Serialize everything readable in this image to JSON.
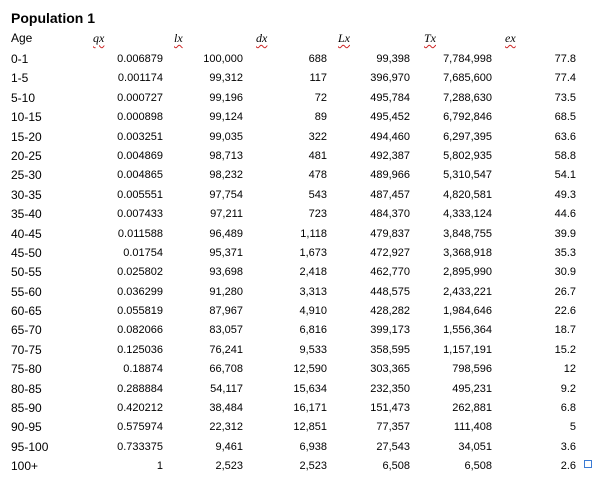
{
  "sheet": {
    "title": "Population 1",
    "headers": {
      "age": "Age",
      "qx": "qx",
      "lx": "lx",
      "dx": "dx",
      "Lx": "Lx",
      "Tx": "Tx",
      "ex": "ex"
    },
    "rows": [
      {
        "age": "0-1",
        "qx": "0.006879",
        "lx": "100,000",
        "dx": "688",
        "Lx": "99,398",
        "Tx": "7,784,998",
        "ex": "77.8"
      },
      {
        "age": "1-5",
        "qx": "0.001174",
        "lx": "99,312",
        "dx": "117",
        "Lx": "396,970",
        "Tx": "7,685,600",
        "ex": "77.4"
      },
      {
        "age": "5-10",
        "qx": "0.000727",
        "lx": "99,196",
        "dx": "72",
        "Lx": "495,784",
        "Tx": "7,288,630",
        "ex": "73.5"
      },
      {
        "age": "10-15",
        "qx": "0.000898",
        "lx": "99,124",
        "dx": "89",
        "Lx": "495,452",
        "Tx": "6,792,846",
        "ex": "68.5"
      },
      {
        "age": "15-20",
        "qx": "0.003251",
        "lx": "99,035",
        "dx": "322",
        "Lx": "494,460",
        "Tx": "6,297,395",
        "ex": "63.6"
      },
      {
        "age": "20-25",
        "qx": "0.004869",
        "lx": "98,713",
        "dx": "481",
        "Lx": "492,387",
        "Tx": "5,802,935",
        "ex": "58.8"
      },
      {
        "age": "25-30",
        "qx": "0.004865",
        "lx": "98,232",
        "dx": "478",
        "Lx": "489,966",
        "Tx": "5,310,547",
        "ex": "54.1"
      },
      {
        "age": "30-35",
        "qx": "0.005551",
        "lx": "97,754",
        "dx": "543",
        "Lx": "487,457",
        "Tx": "4,820,581",
        "ex": "49.3"
      },
      {
        "age": "35-40",
        "qx": "0.007433",
        "lx": "97,211",
        "dx": "723",
        "Lx": "484,370",
        "Tx": "4,333,124",
        "ex": "44.6"
      },
      {
        "age": "40-45",
        "qx": "0.011588",
        "lx": "96,489",
        "dx": "1,118",
        "Lx": "479,837",
        "Tx": "3,848,755",
        "ex": "39.9"
      },
      {
        "age": "45-50",
        "qx": "0.01754",
        "lx": "95,371",
        "dx": "1,673",
        "Lx": "472,927",
        "Tx": "3,368,918",
        "ex": "35.3"
      },
      {
        "age": "50-55",
        "qx": "0.025802",
        "lx": "93,698",
        "dx": "2,418",
        "Lx": "462,770",
        "Tx": "2,895,990",
        "ex": "30.9"
      },
      {
        "age": "55-60",
        "qx": "0.036299",
        "lx": "91,280",
        "dx": "3,313",
        "Lx": "448,575",
        "Tx": "2,433,221",
        "ex": "26.7"
      },
      {
        "age": "60-65",
        "qx": "0.055819",
        "lx": "87,967",
        "dx": "4,910",
        "Lx": "428,282",
        "Tx": "1,984,646",
        "ex": "22.6"
      },
      {
        "age": "65-70",
        "qx": "0.082066",
        "lx": "83,057",
        "dx": "6,816",
        "Lx": "399,173",
        "Tx": "1,556,364",
        "ex": "18.7"
      },
      {
        "age": "70-75",
        "qx": "0.125036",
        "lx": "76,241",
        "dx": "9,533",
        "Lx": "358,595",
        "Tx": "1,157,191",
        "ex": "15.2"
      },
      {
        "age": "75-80",
        "qx": "0.18874",
        "lx": "66,708",
        "dx": "12,590",
        "Lx": "303,365",
        "Tx": "798,596",
        "ex": "12"
      },
      {
        "age": "80-85",
        "qx": "0.288884",
        "lx": "54,117",
        "dx": "15,634",
        "Lx": "232,350",
        "Tx": "495,231",
        "ex": "9.2"
      },
      {
        "age": "85-90",
        "qx": "0.420212",
        "lx": "38,484",
        "dx": "16,171",
        "Lx": "151,473",
        "Tx": "262,881",
        "ex": "6.8"
      },
      {
        "age": "90-95",
        "qx": "0.575974",
        "lx": "22,312",
        "dx": "12,851",
        "Lx": "77,357",
        "Tx": "111,408",
        "ex": "5"
      },
      {
        "age": "95-100",
        "qx": "0.733375",
        "lx": "9,461",
        "dx": "6,938",
        "Lx": "27,543",
        "Tx": "34,051",
        "ex": "3.6"
      },
      {
        "age": "100+",
        "qx": "1",
        "lx": "2,523",
        "dx": "2,523",
        "Lx": "6,508",
        "Tx": "6,508",
        "ex": "2.6"
      }
    ]
  },
  "colors": {
    "spellcheck_underline": "#cc2222",
    "selection_handle": "#3b7bd4"
  }
}
